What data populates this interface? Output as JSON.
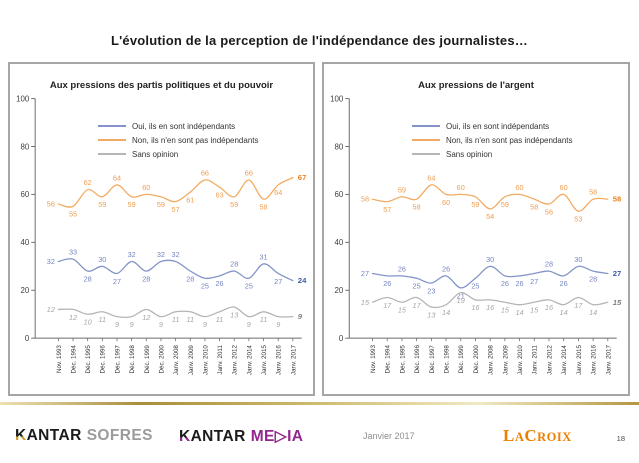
{
  "page_title": "L'évolution de la perception de l'indépendance des journalistes…",
  "colors": {
    "oui_line": "#8494c8",
    "oui_label": "#7585c0",
    "oui_final": "#3d5ba9",
    "non_line": "#f3ab63",
    "non_label": "#ef9e51",
    "non_final": "#e8821e",
    "sans_line": "#b5b5b5",
    "sans_label": "#a6a6a6",
    "sans_final": "#7f7f7f",
    "axis": "#6b6b6b",
    "gold_divider": "#c3a84c",
    "kantar_black": "#1b1b1b",
    "sofres_gray": "#9b9b9b",
    "media_purple": "#93268f",
    "lacroix_orange": "#ee7f00"
  },
  "chart_data": [
    {
      "type": "line",
      "title": "Aux pressions des partis politiques et du pouvoir",
      "categories": [
        "Nov. 1993",
        "Déc. 1994",
        "Déc. 1995",
        "Déc. 1996",
        "Déc. 1997",
        "Déc. 1998",
        "Déc. 1999",
        "Déc. 2000",
        "Janv. 2008",
        "Janv. 2009",
        "Janv. 2010",
        "Janv. 2011",
        "Janv. 2012",
        "Janv. 2014",
        "Janv. 2015",
        "Janv. 2016",
        "Janv. 2017"
      ],
      "series": [
        {
          "name": "Oui, ils en sont indépendants",
          "color_key": "oui",
          "values": [
            32,
            33,
            28,
            30,
            27,
            32,
            28,
            32,
            32,
            28,
            25,
            26,
            28,
            25,
            31,
            27,
            24
          ]
        },
        {
          "name": "Non, ils n'en sont pas indépendants",
          "color_key": "non",
          "values": [
            56,
            55,
            62,
            59,
            64,
            59,
            60,
            59,
            57,
            61,
            66,
            63,
            59,
            66,
            58,
            64,
            67
          ]
        },
        {
          "name": "Sans opinion",
          "color_key": "sans",
          "labels_below": true,
          "labels_italic": true,
          "values": [
            12,
            12,
            10,
            11,
            9,
            9,
            12,
            9,
            11,
            11,
            9,
            11,
            13,
            9,
            11,
            9,
            9
          ]
        }
      ],
      "ylim": [
        0,
        100
      ],
      "yticks": [
        0,
        20,
        40,
        60,
        80,
        100
      ],
      "grid": false,
      "legend_position": "top-left"
    },
    {
      "type": "line",
      "title": "Aux  pressions de l'argent",
      "categories": [
        "Nov. 1993",
        "Déc. 1994",
        "Déc. 1995",
        "Déc. 1996",
        "Déc. 1997",
        "Déc. 1998",
        "Déc. 1999",
        "Déc. 2000",
        "Janv. 2008",
        "Janv. 2009",
        "Janv. 2010",
        "Janv. 2011",
        "Janv. 2012",
        "Janv. 2014",
        "Janv. 2015",
        "Janv. 2016",
        "Janv. 2017"
      ],
      "series": [
        {
          "name": "Oui, ils en sont indépendants",
          "color_key": "oui",
          "values": [
            27,
            26,
            26,
            25,
            23,
            26,
            21,
            25,
            30,
            26,
            26,
            27,
            28,
            26,
            30,
            28,
            27
          ]
        },
        {
          "name": "Non, ils n'en sont pas indépendants",
          "color_key": "non",
          "values": [
            58,
            57,
            59,
            58,
            64,
            60,
            60,
            59,
            54,
            59,
            60,
            58,
            56,
            60,
            53,
            58,
            58
          ]
        },
        {
          "name": "Sans opinion",
          "color_key": "sans",
          "labels_below": true,
          "labels_italic": true,
          "values": [
            15,
            17,
            15,
            17,
            13,
            14,
            19,
            16,
            16,
            15,
            14,
            15,
            16,
            14,
            17,
            14,
            15
          ]
        }
      ],
      "ylim": [
        0,
        100
      ],
      "yticks": [
        0,
        20,
        40,
        60,
        80,
        100
      ],
      "grid": false,
      "legend_position": "top-left"
    }
  ],
  "footer": {
    "date": "Janvier 2017",
    "page_number": "18",
    "kantar_sofres": {
      "kantar": "KANTAR",
      "sofres": "SOFRES"
    },
    "kantar_media": {
      "kantar": "KANTAR",
      "media_pre": "ME",
      "media_triangle": "▷",
      "media_post": "IA"
    },
    "la_croix": {
      "l": "L",
      "a": "A",
      "c": "C",
      "roix": "ROIX"
    }
  }
}
